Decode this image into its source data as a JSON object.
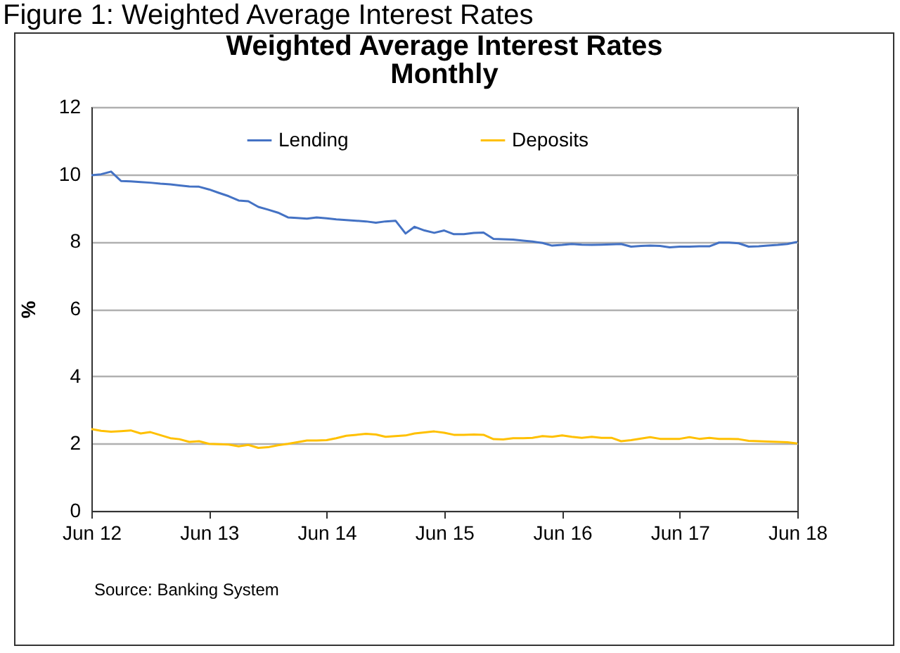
{
  "chart_data": {
    "type": "line",
    "title": "Weighted Average Interest Rates",
    "subtitle": "Monthly",
    "ylabel": "%",
    "annotations": [
      "Figure 1: Weighted Average Interest Rates",
      "Source: Banking System"
    ],
    "x": [
      "2012-06",
      "2012-07",
      "2012-08",
      "2012-09",
      "2012-10",
      "2012-11",
      "2012-12",
      "2013-01",
      "2013-02",
      "2013-03",
      "2013-04",
      "2013-05",
      "2013-06",
      "2013-07",
      "2013-08",
      "2013-09",
      "2013-10",
      "2013-11",
      "2013-12",
      "2014-01",
      "2014-02",
      "2014-03",
      "2014-04",
      "2014-05",
      "2014-06",
      "2014-07",
      "2014-08",
      "2014-09",
      "2014-10",
      "2014-11",
      "2014-12",
      "2015-01",
      "2015-02",
      "2015-03",
      "2015-04",
      "2015-05",
      "2015-06",
      "2015-07",
      "2015-08",
      "2015-09",
      "2015-10",
      "2015-11",
      "2015-12",
      "2016-01",
      "2016-02",
      "2016-03",
      "2016-04",
      "2016-05",
      "2016-06",
      "2016-07",
      "2016-08",
      "2016-09",
      "2016-10",
      "2016-11",
      "2016-12",
      "2017-01",
      "2017-02",
      "2017-03",
      "2017-04",
      "2017-05",
      "2017-06",
      "2017-07",
      "2017-08",
      "2017-09",
      "2017-10",
      "2017-11",
      "2017-12",
      "2018-01",
      "2018-02",
      "2018-03",
      "2018-04",
      "2018-05",
      "2018-06"
    ],
    "series": [
      {
        "name": "Lending",
        "color": "#4472c4",
        "values": [
          9.97,
          10.0,
          10.08,
          9.8,
          9.79,
          9.77,
          9.75,
          9.72,
          9.7,
          9.67,
          9.64,
          9.63,
          9.55,
          9.45,
          9.35,
          9.22,
          9.2,
          9.03,
          8.95,
          8.86,
          8.72,
          8.7,
          8.68,
          8.72,
          8.69,
          8.66,
          8.64,
          8.62,
          8.6,
          8.56,
          8.6,
          8.62,
          8.24,
          8.44,
          8.33,
          8.26,
          8.33,
          8.22,
          8.22,
          8.26,
          8.27,
          8.08,
          8.07,
          8.06,
          8.03,
          8.0,
          7.96,
          7.88,
          7.9,
          7.93,
          7.91,
          7.9,
          7.91,
          7.92,
          7.93,
          7.85,
          7.87,
          7.88,
          7.87,
          7.83,
          7.85,
          7.85,
          7.86,
          7.86,
          7.97,
          7.97,
          7.95,
          7.85,
          7.86,
          7.88,
          7.9,
          7.93,
          7.99
        ]
      },
      {
        "name": "Deposits",
        "color": "#ffc000",
        "values": [
          2.43,
          2.38,
          2.35,
          2.37,
          2.39,
          2.3,
          2.34,
          2.25,
          2.16,
          2.13,
          2.05,
          2.07,
          1.99,
          1.98,
          1.97,
          1.92,
          1.96,
          1.87,
          1.89,
          1.95,
          1.99,
          2.04,
          2.09,
          2.09,
          2.1,
          2.16,
          2.23,
          2.26,
          2.29,
          2.27,
          2.2,
          2.22,
          2.24,
          2.3,
          2.33,
          2.36,
          2.32,
          2.26,
          2.26,
          2.27,
          2.26,
          2.13,
          2.12,
          2.16,
          2.16,
          2.17,
          2.22,
          2.2,
          2.24,
          2.2,
          2.17,
          2.2,
          2.17,
          2.17,
          2.07,
          2.1,
          2.15,
          2.19,
          2.14,
          2.14,
          2.14,
          2.19,
          2.14,
          2.17,
          2.14,
          2.14,
          2.13,
          2.08,
          2.07,
          2.06,
          2.05,
          2.04,
          2.0
        ]
      }
    ],
    "xlim": [
      "2012-06",
      "2018-06"
    ],
    "xticks": [
      {
        "value": "2012-06",
        "label": "Jun 12"
      },
      {
        "value": "2013-06",
        "label": "Jun 13"
      },
      {
        "value": "2014-06",
        "label": "Jun 14"
      },
      {
        "value": "2015-06",
        "label": "Jun 15"
      },
      {
        "value": "2016-06",
        "label": "Jun 16"
      },
      {
        "value": "2017-06",
        "label": "Jun 17"
      },
      {
        "value": "2018-06",
        "label": "Jun 18"
      }
    ],
    "ylim": [
      0,
      12
    ],
    "yticks": [
      0,
      2,
      4,
      6,
      8,
      10,
      12
    ],
    "grid": "y",
    "legend": "top",
    "marker": "none",
    "line_style": "solid"
  }
}
